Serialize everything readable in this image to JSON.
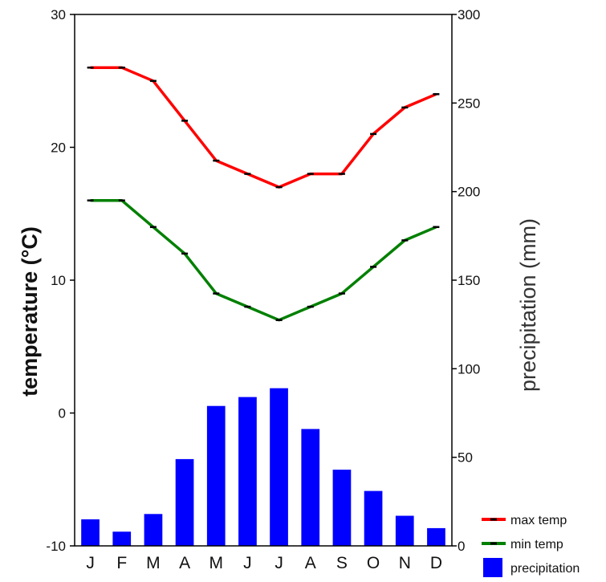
{
  "chart_data": {
    "type": "bar+line",
    "categories": [
      "J",
      "F",
      "M",
      "A",
      "M",
      "J",
      "J",
      "A",
      "S",
      "O",
      "N",
      "D"
    ],
    "series": [
      {
        "name": "max temp",
        "type": "line",
        "axis": "left",
        "color": "#ff0000",
        "values": [
          26,
          26,
          25,
          22,
          19,
          18,
          17,
          18,
          18,
          21,
          23,
          24
        ]
      },
      {
        "name": "min temp",
        "type": "line",
        "axis": "left",
        "color": "#008000",
        "values": [
          16,
          16,
          14,
          12,
          9,
          8,
          7,
          8,
          9,
          11,
          13,
          14
        ]
      },
      {
        "name": "precipitation",
        "type": "bar",
        "axis": "right",
        "color": "#0000ff",
        "values": [
          15,
          8,
          18,
          49,
          79,
          84,
          89,
          66,
          43,
          31,
          17,
          10
        ]
      }
    ],
    "ylabel_left": "temperature (°C)",
    "ylabel_right": "precipitation (mm)",
    "ylim_left": [
      -10,
      30
    ],
    "ylim_right": [
      0,
      300
    ],
    "yticks_left": [
      "-10",
      "0",
      "10",
      "20",
      "30"
    ],
    "yticks_right": [
      "0",
      "50",
      "100",
      "150",
      "200",
      "250",
      "300"
    ],
    "legend_position": "bottom-right",
    "grid": false
  }
}
